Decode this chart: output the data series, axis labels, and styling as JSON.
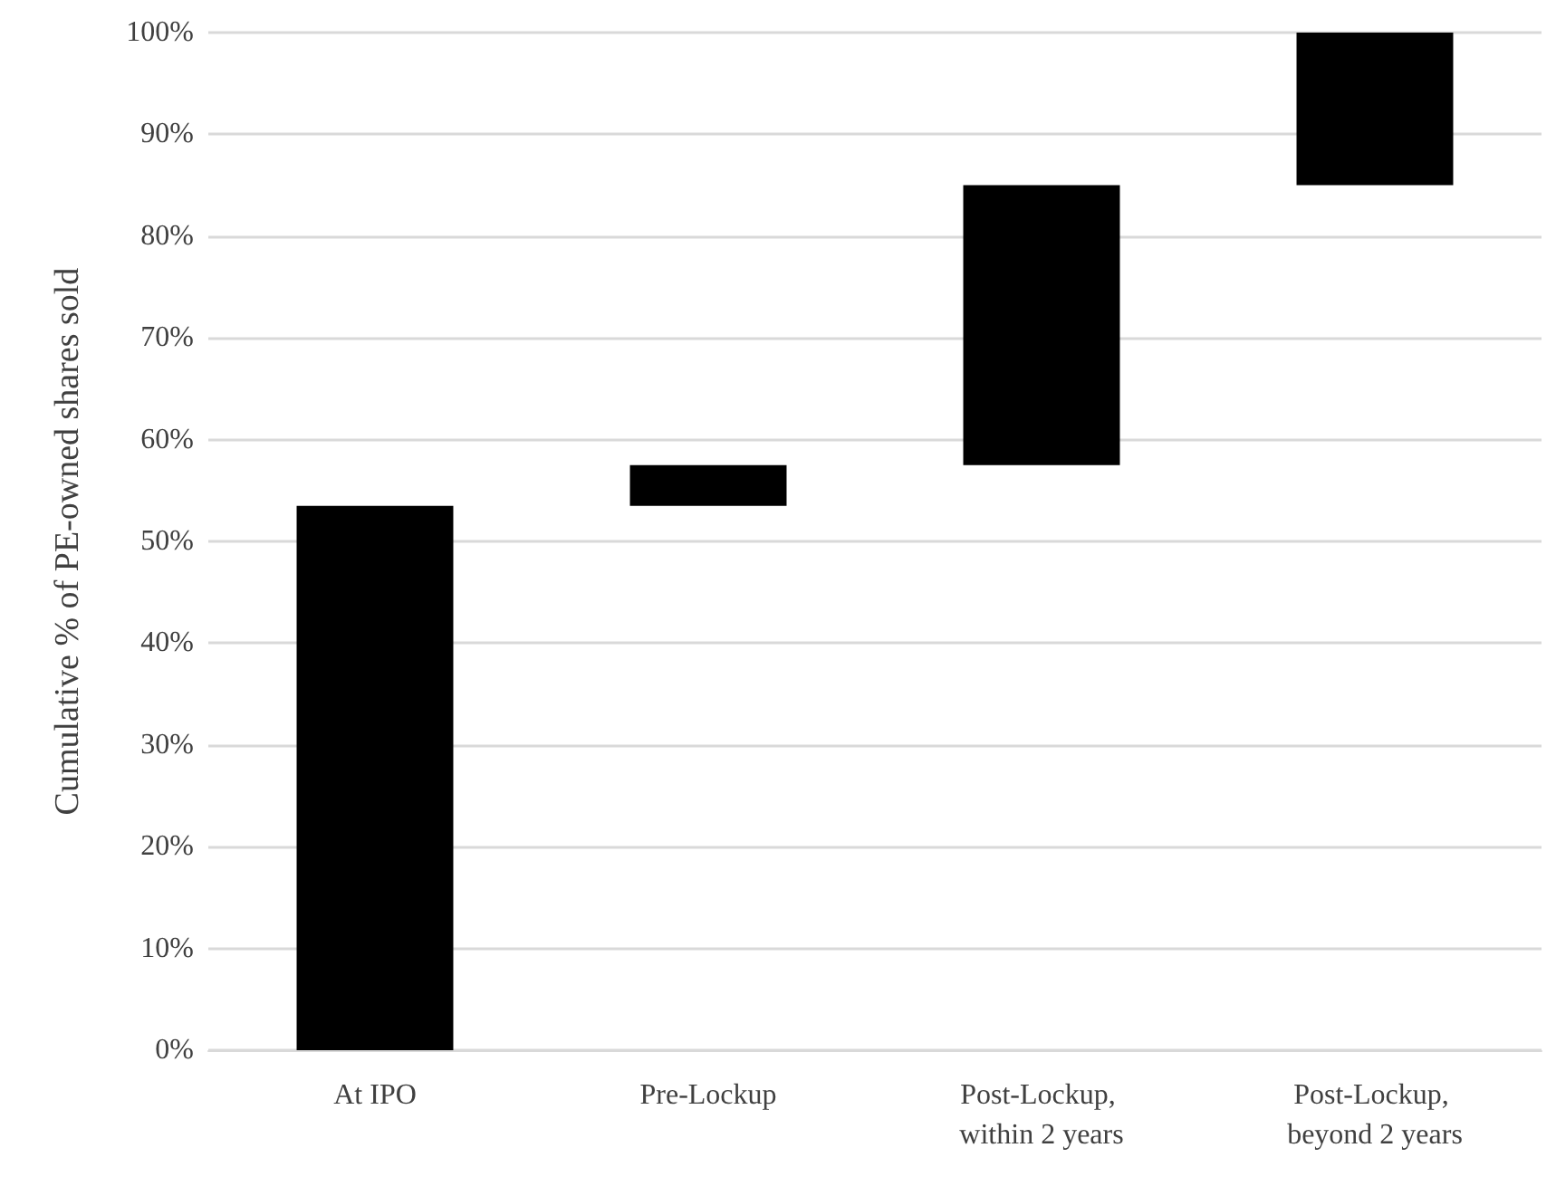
{
  "chart_data": {
    "type": "bar",
    "ylabel": "Cumulative % of PE-owned shares sold",
    "categories": [
      "At IPO",
      "Pre-Lockup",
      "Post-Lockup, within 2 years",
      "Post-Lockup, beyond 2 years"
    ],
    "values": [
      53.5,
      4,
      27.5,
      15
    ],
    "base": [
      0,
      53.5,
      57.5,
      85
    ],
    "color": "#000000",
    "ylim": [
      0,
      100
    ],
    "yticks": [
      {
        "value": 0,
        "label": "0%"
      },
      {
        "value": 10,
        "label": "10%"
      },
      {
        "value": 20,
        "label": "20%"
      },
      {
        "value": 30,
        "label": "30%"
      },
      {
        "value": 40,
        "label": "40%"
      },
      {
        "value": 50,
        "label": "50%"
      },
      {
        "value": 60,
        "label": "60%"
      },
      {
        "value": 70,
        "label": "70%"
      },
      {
        "value": 80,
        "label": "80%"
      },
      {
        "value": 90,
        "label": "90%"
      },
      {
        "value": 100,
        "label": "100%"
      }
    ],
    "grid": "y"
  }
}
